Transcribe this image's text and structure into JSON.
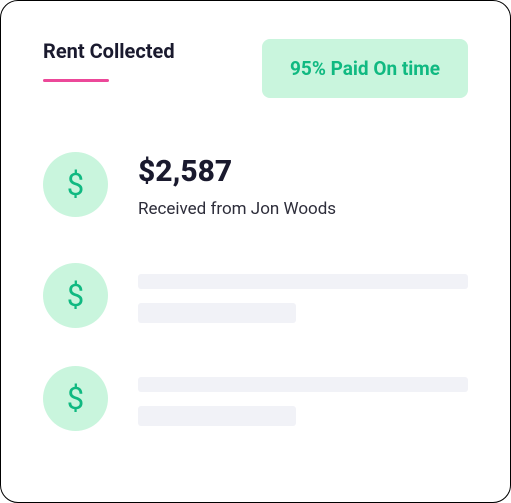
{
  "header": {
    "title": "Rent Collected",
    "badge_text": "95% Paid On time"
  },
  "entry": {
    "icon_glyph": "$",
    "amount": "$2,587",
    "subtitle": "Received from Jon Woods"
  },
  "skeletons": [
    {
      "icon_glyph": "$"
    },
    {
      "icon_glyph": "$"
    }
  ],
  "colors": {
    "accent_pink": "#ec4899",
    "badge_bg": "#c9f5dd",
    "badge_text": "#10b981",
    "icon_bg": "#c9f5dd",
    "icon_fg": "#10b981",
    "text_primary": "#1a1a2e",
    "text_secondary": "#2d2d3a",
    "skeleton": "#f1f2f7",
    "card_bg": "#ffffff"
  }
}
